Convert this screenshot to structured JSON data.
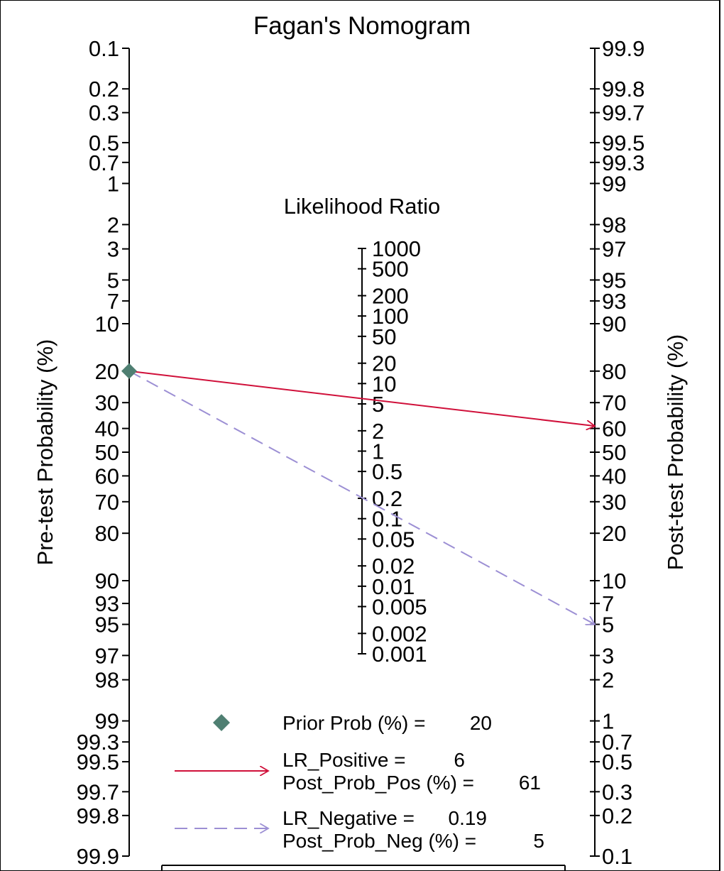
{
  "chart_data": {
    "type": "nomogram",
    "title": "Fagan's Nomogram",
    "left_axis_label": "Pre-test Probability (%)",
    "right_axis_label": "Post-test Probability (%)",
    "center_axis_label": "Likelihood Ratio",
    "left_ticks": [
      {
        "value": 0.1,
        "label": "0.1"
      },
      {
        "value": 0.2,
        "label": "0.2"
      },
      {
        "value": 0.3,
        "label": "0.3"
      },
      {
        "value": 0.5,
        "label": "0.5"
      },
      {
        "value": 0.7,
        "label": "0.7"
      },
      {
        "value": 1,
        "label": "1"
      },
      {
        "value": 2,
        "label": "2"
      },
      {
        "value": 3,
        "label": "3"
      },
      {
        "value": 5,
        "label": "5"
      },
      {
        "value": 7,
        "label": "7"
      },
      {
        "value": 10,
        "label": "10"
      },
      {
        "value": 20,
        "label": "20"
      },
      {
        "value": 30,
        "label": "30"
      },
      {
        "value": 40,
        "label": "40"
      },
      {
        "value": 50,
        "label": "50"
      },
      {
        "value": 60,
        "label": "60"
      },
      {
        "value": 70,
        "label": "70"
      },
      {
        "value": 80,
        "label": "80"
      },
      {
        "value": 90,
        "label": "90"
      },
      {
        "value": 93,
        "label": "93"
      },
      {
        "value": 95,
        "label": "95"
      },
      {
        "value": 97,
        "label": "97"
      },
      {
        "value": 98,
        "label": "98"
      },
      {
        "value": 99,
        "label": "99"
      },
      {
        "value": 99.3,
        "label": "99.3"
      },
      {
        "value": 99.5,
        "label": "99.5"
      },
      {
        "value": 99.7,
        "label": "99.7"
      },
      {
        "value": 99.8,
        "label": "99.8"
      },
      {
        "value": 99.9,
        "label": "99.9"
      }
    ],
    "right_ticks": [
      {
        "value": 99.9,
        "label": "99.9"
      },
      {
        "value": 99.8,
        "label": "99.8"
      },
      {
        "value": 99.7,
        "label": "99.7"
      },
      {
        "value": 99.5,
        "label": "99.5"
      },
      {
        "value": 99.3,
        "label": "99.3"
      },
      {
        "value": 99,
        "label": "99"
      },
      {
        "value": 98,
        "label": "98"
      },
      {
        "value": 97,
        "label": "97"
      },
      {
        "value": 95,
        "label": "95"
      },
      {
        "value": 93,
        "label": "93"
      },
      {
        "value": 90,
        "label": "90"
      },
      {
        "value": 80,
        "label": "80"
      },
      {
        "value": 70,
        "label": "70"
      },
      {
        "value": 60,
        "label": "60"
      },
      {
        "value": 50,
        "label": "50"
      },
      {
        "value": 40,
        "label": "40"
      },
      {
        "value": 30,
        "label": "30"
      },
      {
        "value": 20,
        "label": "20"
      },
      {
        "value": 10,
        "label": "10"
      },
      {
        "value": 7,
        "label": "7"
      },
      {
        "value": 5,
        "label": "5"
      },
      {
        "value": 3,
        "label": "3"
      },
      {
        "value": 2,
        "label": "2"
      },
      {
        "value": 1,
        "label": "1"
      },
      {
        "value": 0.7,
        "label": "0.7"
      },
      {
        "value": 0.5,
        "label": "0.5"
      },
      {
        "value": 0.3,
        "label": "0.3"
      },
      {
        "value": 0.2,
        "label": "0.2"
      },
      {
        "value": 0.1,
        "label": "0.1"
      }
    ],
    "lr_ticks": [
      {
        "value": 1000,
        "label": "1000"
      },
      {
        "value": 500,
        "label": "500"
      },
      {
        "value": 200,
        "label": "200"
      },
      {
        "value": 100,
        "label": "100"
      },
      {
        "value": 50,
        "label": "50"
      },
      {
        "value": 20,
        "label": "20"
      },
      {
        "value": 10,
        "label": "10"
      },
      {
        "value": 5,
        "label": "5"
      },
      {
        "value": 2,
        "label": "2"
      },
      {
        "value": 1,
        "label": "1"
      },
      {
        "value": 0.5,
        "label": "0.5"
      },
      {
        "value": 0.2,
        "label": "0.2"
      },
      {
        "value": 0.1,
        "label": "0.1"
      },
      {
        "value": 0.05,
        "label": "0.05"
      },
      {
        "value": 0.02,
        "label": "0.02"
      },
      {
        "value": 0.01,
        "label": "0.01"
      },
      {
        "value": 0.005,
        "label": "0.005"
      },
      {
        "value": 0.002,
        "label": "0.002"
      },
      {
        "value": 0.001,
        "label": "0.001"
      }
    ],
    "prior_prob": 20,
    "lr_positive": 6,
    "post_prob_pos": 61,
    "lr_negative": 0.19,
    "post_prob_neg": 5,
    "colors": {
      "positive_line": "#d0103a",
      "negative_line": "#9c8fd4",
      "prior_marker": "#4f7f72",
      "axis": "#000000"
    },
    "legend": {
      "prior_label": "Prior Prob (%) =",
      "prior_value": "20",
      "lr_pos_label": "LR_Positive =",
      "lr_pos_value": "6",
      "post_pos_label": "Post_Prob_Pos (%) =",
      "post_pos_value": "61",
      "lr_neg_label": "LR_Negative =",
      "lr_neg_value": "0.19",
      "post_neg_label": "Post_Prob_Neg (%) =",
      "post_neg_value": "5"
    }
  }
}
